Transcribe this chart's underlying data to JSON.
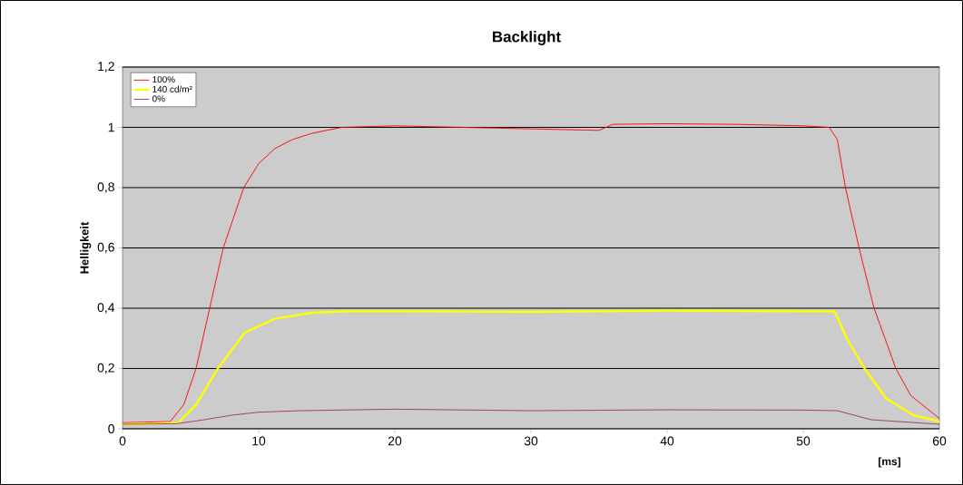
{
  "chart_data": {
    "type": "line",
    "title": "Backlight",
    "xlabel": "[ms]",
    "ylabel": "Helligkeit",
    "xlim": [
      0,
      60
    ],
    "ylim": [
      0,
      1.2
    ],
    "xticks": [
      0,
      10,
      20,
      30,
      40,
      50,
      60
    ],
    "yticks": [
      0,
      {
        "value": 0.2,
        "label": "0,2"
      },
      {
        "value": 0.4,
        "label": "0,4"
      },
      {
        "value": 0.6,
        "label": "0,6"
      },
      {
        "value": 0.8,
        "label": "0,8"
      },
      1,
      {
        "value": 1.2,
        "label": "1,2"
      }
    ],
    "grid": "y",
    "legend": "top left",
    "marker": "none",
    "line_style": "solid",
    "series": [
      {
        "name": "100%",
        "color": "#ff0000",
        "x": [
          0,
          3.5,
          4.5,
          5.4,
          6.4,
          7.4,
          8.9,
          10,
          11.2,
          12.5,
          13.9,
          16.1,
          20,
          25,
          30,
          35,
          36,
          40,
          45,
          50,
          51.9,
          52.5,
          53.1,
          54.1,
          55.2,
          56.8,
          57.9,
          60
        ],
        "values": [
          0.02,
          0.024,
          0.08,
          0.2,
          0.4,
          0.6,
          0.8,
          0.88,
          0.93,
          0.96,
          0.98,
          1.0,
          1.005,
          1.0,
          0.995,
          0.99,
          1.01,
          1.012,
          1.01,
          1.005,
          1.0,
          0.96,
          0.8,
          0.6,
          0.4,
          0.2,
          0.11,
          0.034
        ]
      },
      {
        "name": "140 cd/m²",
        "color": "#ffff00",
        "x": [
          0,
          4.1,
          5.4,
          7,
          9,
          11.2,
          13.9,
          16.6,
          20,
          30,
          40,
          50,
          52.3,
          53.2,
          54.5,
          56.1,
          58.1,
          60
        ],
        "values": [
          0.015,
          0.02,
          0.08,
          0.2,
          0.32,
          0.365,
          0.385,
          0.39,
          0.39,
          0.388,
          0.392,
          0.39,
          0.39,
          0.3,
          0.2,
          0.1,
          0.045,
          0.024
        ]
      },
      {
        "name": "0%",
        "color": "#993366",
        "x": [
          0,
          4,
          6,
          8,
          10,
          13,
          20,
          30,
          40,
          50,
          52.5,
          55,
          60
        ],
        "values": [
          0.015,
          0.017,
          0.03,
          0.045,
          0.055,
          0.06,
          0.065,
          0.06,
          0.063,
          0.062,
          0.06,
          0.03,
          0.015
        ]
      }
    ]
  }
}
